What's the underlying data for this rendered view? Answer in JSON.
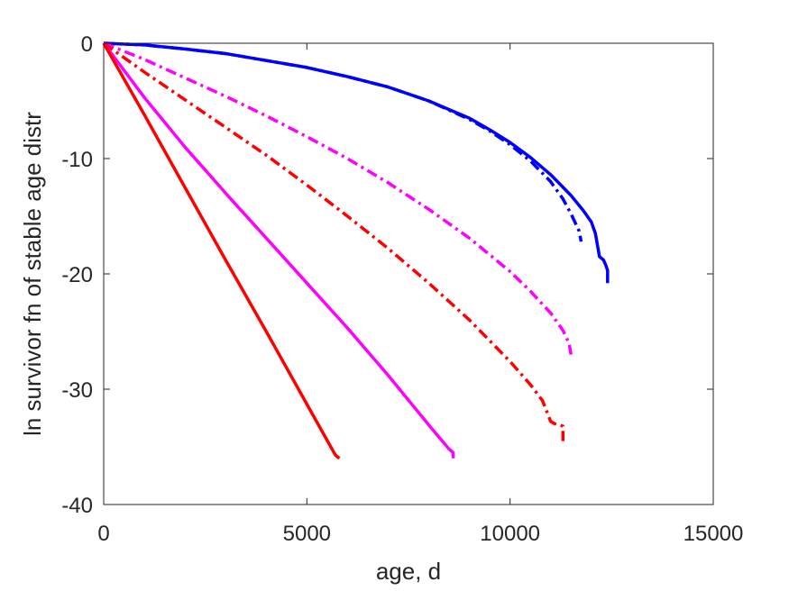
{
  "chart_data": {
    "type": "line",
    "title": "",
    "xlabel": "age, d",
    "ylabel": "ln survivor fn of stable age distr",
    "xlim": [
      0,
      15000
    ],
    "ylim": [
      -40,
      0
    ],
    "xticks": [
      0,
      5000,
      10000,
      15000
    ],
    "xtick_labels": [
      "0",
      "5000",
      "10000",
      "15000"
    ],
    "yticks": [
      0,
      -10,
      -20,
      -30,
      -40
    ],
    "ytick_labels": [
      "0",
      "-10",
      "-20",
      "-30",
      "-40"
    ],
    "grid": false,
    "legend": "none",
    "series": [
      {
        "color": "#0000ff",
        "dash": "solid",
        "x": [
          0,
          1000,
          2000,
          3000,
          4000,
          5000,
          6000,
          7000,
          8000,
          9000,
          9500,
          10000,
          10500,
          11000,
          11500,
          11800,
          12000,
          12100,
          12200,
          12300,
          12350,
          12400,
          12400
        ],
        "y": [
          0,
          -0.15,
          -0.5,
          -0.9,
          -1.5,
          -2.1,
          -2.9,
          -3.8,
          -5.0,
          -6.5,
          -7.5,
          -8.6,
          -9.9,
          -11.4,
          -13.2,
          -14.5,
          -15.5,
          -16.5,
          -18.5,
          -18.8,
          -19.2,
          -19.7,
          -20.8
        ]
      },
      {
        "color": "#0000ff",
        "dash": "dashdot",
        "x": [
          0,
          1000,
          2000,
          3000,
          4000,
          5000,
          6000,
          7000,
          8000,
          9000,
          9500,
          10000,
          10500,
          11000,
          11300,
          11500,
          11700,
          11750
        ],
        "y": [
          0,
          -0.15,
          -0.5,
          -0.9,
          -1.5,
          -2.1,
          -2.9,
          -3.8,
          -5.0,
          -6.6,
          -7.6,
          -8.8,
          -10.2,
          -12.0,
          -13.5,
          -14.8,
          -16.3,
          -17.2
        ]
      },
      {
        "color": "#ff00ff",
        "dash": "dashdot",
        "x": [
          0,
          1000,
          2000,
          3000,
          4000,
          5000,
          6000,
          7000,
          8000,
          9000,
          10000,
          10500,
          11000,
          11300,
          11450,
          11500
        ],
        "y": [
          0,
          -1.4,
          -3.0,
          -4.6,
          -6.3,
          -8.1,
          -10.0,
          -12.1,
          -14.4,
          -16.9,
          -19.8,
          -21.5,
          -23.4,
          -24.9,
          -26.0,
          -27.0
        ]
      },
      {
        "color": "#ff0000",
        "dash": "dashdot",
        "x": [
          0,
          1000,
          2000,
          3000,
          4000,
          5000,
          6000,
          7000,
          8000,
          9000,
          10000,
          10500,
          10800,
          11000,
          11100,
          11300,
          11300
        ],
        "y": [
          0,
          -2.5,
          -4.9,
          -7.3,
          -9.7,
          -12.3,
          -15.0,
          -17.8,
          -20.8,
          -24.0,
          -27.6,
          -29.6,
          -31.0,
          -32.8,
          -33.0,
          -33.2,
          -34.5
        ]
      },
      {
        "color": "#ff00ff",
        "dash": "solid",
        "x": [
          0,
          1000,
          2000,
          3000,
          4000,
          5000,
          6000,
          7000,
          8000,
          8500,
          8600,
          8600
        ],
        "y": [
          0,
          -4.7,
          -9.0,
          -13.0,
          -16.9,
          -20.8,
          -24.7,
          -28.8,
          -33.1,
          -35.2,
          -35.5,
          -36.0
        ]
      },
      {
        "color": "#ff0000",
        "dash": "solid",
        "x": [
          0,
          1000,
          2000,
          3000,
          4000,
          5000,
          5700,
          5800
        ],
        "y": [
          0,
          -6.2,
          -12.5,
          -18.8,
          -25.0,
          -31.3,
          -35.7,
          -36.0
        ]
      }
    ]
  }
}
